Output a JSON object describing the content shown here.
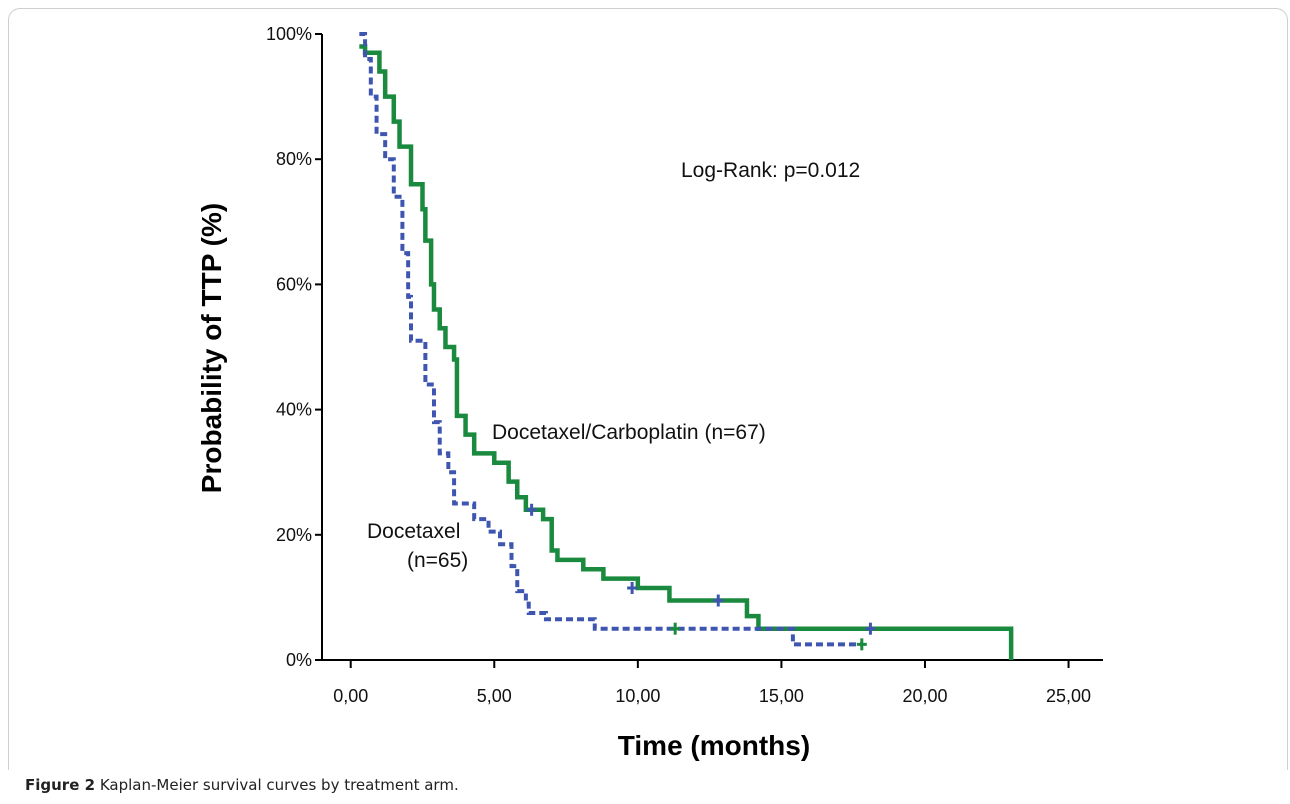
{
  "chart_data": {
    "type": "line",
    "title": "",
    "xlabel": "Time (months)",
    "ylabel": "Probability of TTP (%)",
    "xlim": [
      -1.0,
      26.2
    ],
    "ylim": [
      0,
      100
    ],
    "x_ticks": [
      "0,00",
      "5,00",
      "10,00",
      "15,00",
      "20,00",
      "25,00"
    ],
    "x_tick_values": [
      0,
      5,
      10,
      15,
      20,
      25
    ],
    "y_ticks": [
      "0%",
      "20%",
      "40%",
      "60%",
      "80%",
      "100%"
    ],
    "y_tick_values": [
      0,
      20,
      40,
      60,
      80,
      100
    ],
    "grid": false,
    "series": [
      {
        "name": "Docetaxel/Carboplatin (n=67)",
        "color": "#1a8a3e",
        "style": "solid",
        "steps": [
          [
            0.3,
            98
          ],
          [
            0.5,
            97
          ],
          [
            1.0,
            94
          ],
          [
            1.2,
            90
          ],
          [
            1.5,
            86
          ],
          [
            1.7,
            82
          ],
          [
            2.1,
            76
          ],
          [
            2.5,
            72
          ],
          [
            2.6,
            67
          ],
          [
            2.8,
            60
          ],
          [
            2.9,
            56
          ],
          [
            3.1,
            53
          ],
          [
            3.3,
            50
          ],
          [
            3.6,
            48
          ],
          [
            3.7,
            39
          ],
          [
            4.0,
            36
          ],
          [
            4.3,
            33
          ],
          [
            5.0,
            31.5
          ],
          [
            5.5,
            28.5
          ],
          [
            5.8,
            26
          ],
          [
            6.1,
            24
          ],
          [
            6.7,
            22.5
          ],
          [
            7.0,
            17.5
          ],
          [
            7.2,
            16
          ],
          [
            8.1,
            14.5
          ],
          [
            8.8,
            13
          ],
          [
            10.0,
            11.5
          ],
          [
            11.1,
            9.5
          ],
          [
            13.8,
            7
          ],
          [
            14.2,
            5
          ],
          [
            23.0,
            5
          ],
          [
            23.0,
            0
          ]
        ],
        "censor_marks": [
          [
            11.3,
            5
          ],
          [
            17.8,
            2.5
          ]
        ]
      },
      {
        "name": "Docetaxel (n=65)",
        "color": "#3f56b0",
        "style": "dashed",
        "steps": [
          [
            0.3,
            100
          ],
          [
            0.5,
            96
          ],
          [
            0.7,
            90
          ],
          [
            0.9,
            84
          ],
          [
            1.2,
            80
          ],
          [
            1.5,
            74
          ],
          [
            1.8,
            65
          ],
          [
            2.0,
            58
          ],
          [
            2.1,
            51
          ],
          [
            2.6,
            44
          ],
          [
            2.9,
            38
          ],
          [
            3.1,
            33
          ],
          [
            3.4,
            30
          ],
          [
            3.6,
            25
          ],
          [
            4.3,
            22.5
          ],
          [
            4.8,
            20.5
          ],
          [
            5.2,
            18.5
          ],
          [
            5.6,
            15
          ],
          [
            5.8,
            11
          ],
          [
            6.1,
            9
          ],
          [
            6.2,
            7.5
          ],
          [
            6.8,
            6.5
          ],
          [
            8.5,
            5
          ],
          [
            15.4,
            2.5
          ],
          [
            17.8,
            2.5
          ]
        ],
        "censor_marks": [
          [
            9.8,
            11.5
          ],
          [
            12.8,
            9.5
          ],
          [
            6.3,
            24
          ],
          [
            18.1,
            5
          ]
        ]
      }
    ],
    "annotations": {
      "log_rank": "Log-Rank: p=0.012",
      "combo_label": "Docetaxel/Carboplatin (n=67)",
      "mono_label_line1": "Docetaxel",
      "mono_label_line2": "(n=65)"
    }
  },
  "caption": {
    "label": "Figure 2",
    "text": "Kaplan-Meier survival curves by treatment arm",
    "suffix": "."
  }
}
